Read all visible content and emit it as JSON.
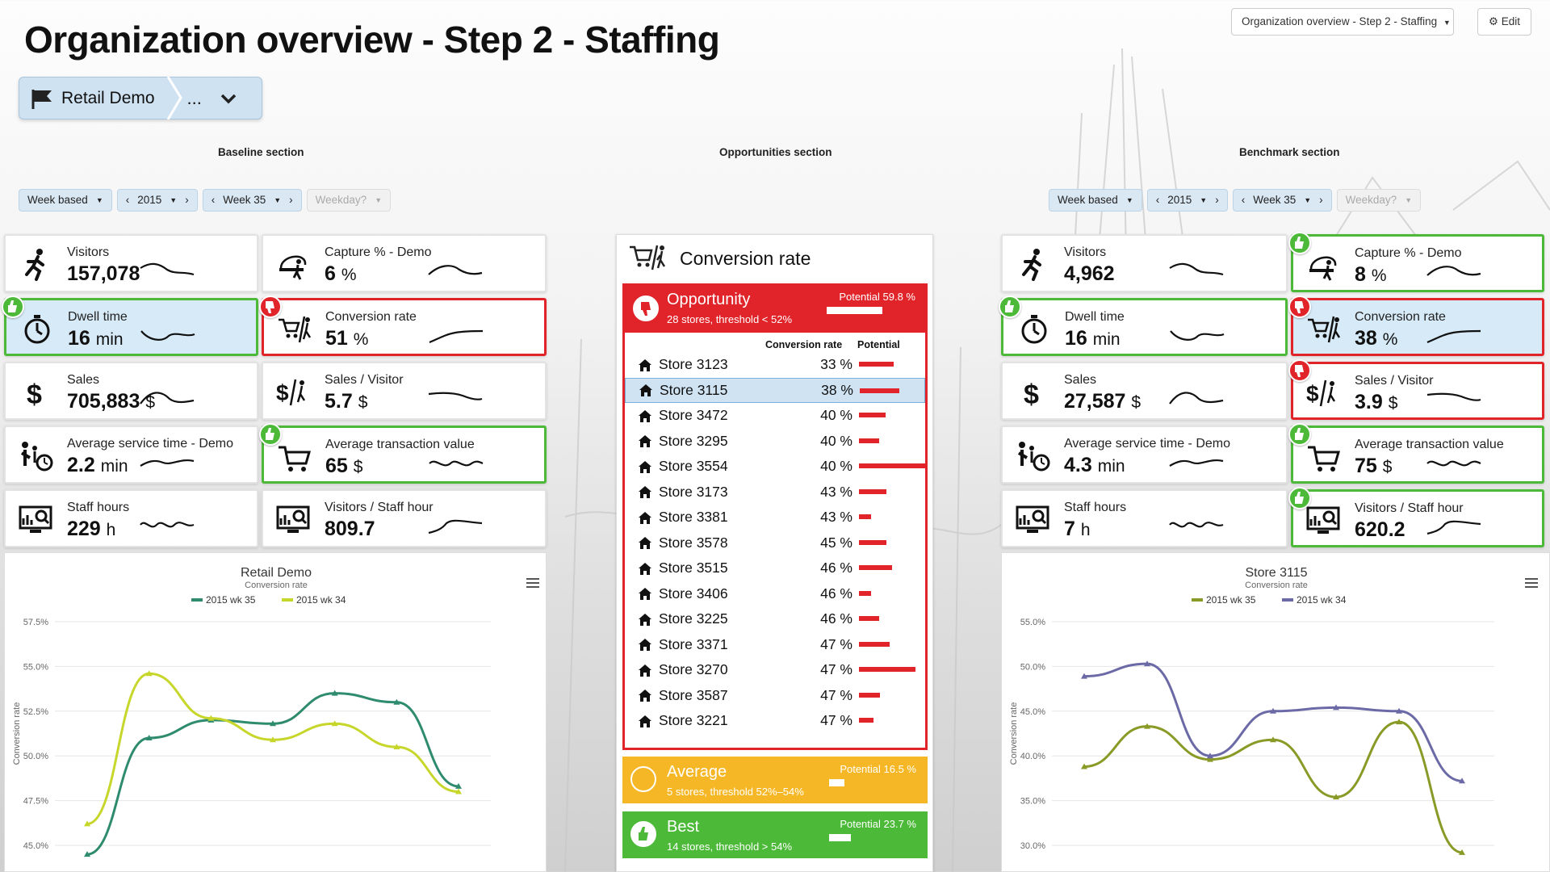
{
  "page_title": "Organization overview - Step 2 - Staffing",
  "top_dropdown": "Organization overview - Step 2 - Staffing",
  "edit_label": "Edit",
  "breadcrumb": {
    "item": "Retail Demo",
    "more": "..."
  },
  "sections": {
    "baseline": "Baseline section",
    "opportunities": "Opportunities section",
    "benchmark": "Benchmark section"
  },
  "filters": {
    "left": {
      "period": "Week based",
      "year": "2015",
      "week": "Week 35",
      "weekday": "Weekday?"
    },
    "right": {
      "period": "Week based",
      "year": "2015",
      "week": "Week 35",
      "weekday": "Weekday?"
    }
  },
  "baseline_kpis": [
    {
      "title": "Visitors",
      "value": "157,078",
      "unit": ""
    },
    {
      "title": "Capture % - Demo",
      "value": "6",
      "unit": "%"
    },
    {
      "title": "Dwell time",
      "value": "16",
      "unit": "min"
    },
    {
      "title": "Conversion rate",
      "value": "51",
      "unit": "%"
    },
    {
      "title": "Sales",
      "value": "705,883",
      "unit": "$"
    },
    {
      "title": "Sales / Visitor",
      "value": "5.7",
      "unit": "$"
    },
    {
      "title": "Average service time - Demo",
      "value": "2.2",
      "unit": "min"
    },
    {
      "title": "Average transaction value",
      "value": "65",
      "unit": "$"
    },
    {
      "title": "Staff hours",
      "value": "229",
      "unit": "h"
    },
    {
      "title": "Visitors / Staff hour",
      "value": "809.7",
      "unit": ""
    }
  ],
  "benchmark_kpis": [
    {
      "title": "Visitors",
      "value": "4,962",
      "unit": ""
    },
    {
      "title": "Capture % - Demo",
      "value": "8",
      "unit": "%"
    },
    {
      "title": "Dwell time",
      "value": "16",
      "unit": "min"
    },
    {
      "title": "Conversion rate",
      "value": "38",
      "unit": "%"
    },
    {
      "title": "Sales",
      "value": "27,587",
      "unit": "$"
    },
    {
      "title": "Sales / Visitor",
      "value": "3.9",
      "unit": "$"
    },
    {
      "title": "Average service time - Demo",
      "value": "4.3",
      "unit": "min"
    },
    {
      "title": "Average transaction value",
      "value": "75",
      "unit": "$"
    },
    {
      "title": "Staff hours",
      "value": "7",
      "unit": "h"
    },
    {
      "title": "Visitors / Staff hour",
      "value": "620.2",
      "unit": ""
    }
  ],
  "opportunities": {
    "title": "Conversion rate",
    "opportunity": {
      "label": "Opportunity",
      "sub": "28 stores, threshold < 52%",
      "potential": "Potential 59.8 %",
      "potential_value": 59.8
    },
    "col_conversion": "Conversion rate",
    "col_potential": "Potential",
    "stores": [
      {
        "name": "Store 3123",
        "rate": "33 %",
        "potential": 0.53
      },
      {
        "name": "Store 3115",
        "rate": "38 %",
        "potential": 0.6
      },
      {
        "name": "Store 3472",
        "rate": "40 %",
        "potential": 0.4
      },
      {
        "name": "Store 3295",
        "rate": "40 %",
        "potential": 0.3
      },
      {
        "name": "Store 3554",
        "rate": "40 %",
        "potential": 1.0
      },
      {
        "name": "Store 3173",
        "rate": "43 %",
        "potential": 0.42
      },
      {
        "name": "Store 3381",
        "rate": "43 %",
        "potential": 0.18
      },
      {
        "name": "Store 3578",
        "rate": "45 %",
        "potential": 0.42
      },
      {
        "name": "Store 3515",
        "rate": "46 %",
        "potential": 0.5
      },
      {
        "name": "Store 3406",
        "rate": "46 %",
        "potential": 0.18
      },
      {
        "name": "Store 3225",
        "rate": "46 %",
        "potential": 0.3
      },
      {
        "name": "Store 3371",
        "rate": "47 %",
        "potential": 0.46
      },
      {
        "name": "Store 3270",
        "rate": "47 %",
        "potential": 0.85
      },
      {
        "name": "Store 3587",
        "rate": "47 %",
        "potential": 0.32
      },
      {
        "name": "Store 3221",
        "rate": "47 %",
        "potential": 0.22
      }
    ],
    "average": {
      "label": "Average",
      "sub": "5 stores, threshold 52%–54%",
      "potential": "Potential 16.5 %",
      "potential_value": 16.5
    },
    "best": {
      "label": "Best",
      "sub": "14 stores, threshold > 54%",
      "potential": "Potential 23.7 %",
      "potential_value": 23.7
    }
  },
  "colors": {
    "green": "#4cba38",
    "red": "#e0242a",
    "amber": "#f6b726",
    "selected": "#d7eaf7"
  },
  "chart_data": [
    {
      "type": "line",
      "title": "Retail Demo",
      "subtitle": "Conversion rate",
      "ylabel": "Conversion rate",
      "ylim": [
        45.0,
        57.5
      ],
      "yticks": [
        "57.5%",
        "55.0%",
        "52.5%",
        "50.0%",
        "47.5%",
        "45.0%"
      ],
      "series": [
        {
          "name": "2015 wk 35",
          "color": "#2e8b6e",
          "values": [
            44.5,
            51.0,
            52.0,
            51.8,
            53.5,
            53.0,
            48.3
          ]
        },
        {
          "name": "2015 wk 34",
          "color": "#c7d62a",
          "values": [
            46.2,
            54.6,
            52.1,
            50.9,
            51.8,
            50.5,
            48.0
          ]
        }
      ]
    },
    {
      "type": "line",
      "title": "Store 3115",
      "subtitle": "Conversion rate",
      "ylabel": "Conversion rate",
      "ylim": [
        30.0,
        55.0
      ],
      "yticks": [
        "55.0%",
        "50.0%",
        "45.0%",
        "40.0%",
        "35.0%",
        "30.0%"
      ],
      "series": [
        {
          "name": "2015 wk 35",
          "color": "#8a9a26",
          "values": [
            38.8,
            43.3,
            39.6,
            41.8,
            35.4,
            43.8,
            29.2
          ]
        },
        {
          "name": "2015 wk 34",
          "color": "#6b6aa6",
          "values": [
            48.9,
            50.3,
            40.0,
            45.0,
            45.4,
            45.0,
            37.2
          ]
        }
      ]
    }
  ]
}
